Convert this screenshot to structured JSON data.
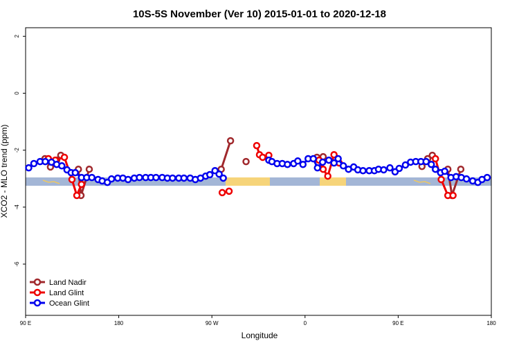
{
  "chart_data": {
    "type": "line",
    "title": "10S-5S November (Ver 10)   2015-01-01 to 2020-12-18",
    "x_label": "Longitude",
    "y_label": "XCO2 - MLO trend (ppm)",
    "xlim": [
      90,
      540
    ],
    "xticks": [
      {
        "value": 90,
        "label": "90 E"
      },
      180,
      {
        "value": 270,
        "label": "90 W"
      },
      {
        "value": 360,
        "label": "0"
      },
      {
        "value": 450,
        "label": "90 E"
      },
      {
        "value": 540,
        "label": "180"
      }
    ],
    "ylim": [
      -7.8,
      2.3
    ],
    "yticks": [
      -6,
      -4,
      -2,
      0,
      2
    ],
    "legend": "bottom-left",
    "series": [
      {
        "name": "Land Nadir",
        "color": "#a0282c",
        "x": [
          108.7,
          114,
          120,
          124,
          null,
          141,
          143.5,
          151.5,
          null,
          279,
          288,
          null,
          303,
          null,
          371.5,
          377.5,
          null,
          473,
          478.5,
          483,
          null,
          498,
          502,
          510.5
        ],
        "values": [
          -2.3,
          -2.59,
          -2.35,
          -2.18,
          null,
          -2.67,
          -3.59,
          -2.67,
          null,
          -2.67,
          -1.67,
          null,
          -2.4,
          null,
          -2.25,
          -2.23,
          null,
          -2.57,
          -2.3,
          -2.18,
          null,
          -2.67,
          -3.59,
          -2.67
        ]
      },
      {
        "name": "Land Glint",
        "color": "#ee0000",
        "x": [
          112,
          118.7,
          127.5,
          134.8,
          139.5,
          144,
          null,
          280,
          286.6,
          null,
          313.3,
          316,
          319,
          325,
          null,
          373.5,
          377.5,
          382,
          388,
          393,
          null,
          486,
          491.6,
          498,
          503
        ],
        "values": [
          -2.3,
          -2.35,
          -2.25,
          -3.03,
          -3.59,
          -3.2,
          null,
          -3.49,
          -3.44,
          null,
          -1.84,
          -2.16,
          -2.25,
          -2.18,
          null,
          -2.35,
          -2.67,
          -2.91,
          -2.16,
          -2.45,
          null,
          -2.3,
          -3.03,
          -3.59,
          -3.59
        ]
      },
      {
        "name": "Ocean Glint",
        "color": "#0000ee",
        "x": [
          93,
          98,
          104,
          109,
          115,
          120,
          125,
          130,
          134,
          138,
          144,
          149,
          154,
          160,
          164,
          169,
          173,
          179,
          184,
          189,
          195,
          200,
          206,
          211,
          216,
          222,
          227,
          232,
          238,
          243,
          249,
          254,
          259,
          264,
          268,
          273,
          277,
          281,
          null,
          325,
          328,
          333,
          338,
          343,
          349,
          353,
          358,
          363,
          368,
          372,
          377,
          383,
          388,
          392,
          397,
          402,
          407,
          411,
          416,
          422,
          427,
          431,
          436,
          442,
          447,
          451,
          457,
          462,
          467,
          472,
          477,
          482,
          486,
          491,
          495,
          501,
          506,
          511,
          516,
          522,
          527,
          531,
          536
        ],
        "values": [
          -2.62,
          -2.47,
          -2.4,
          -2.4,
          -2.42,
          -2.5,
          -2.55,
          -2.69,
          -2.79,
          -2.79,
          -2.96,
          -2.96,
          -2.96,
          -3.03,
          -3.08,
          -3.13,
          -3.01,
          -2.98,
          -2.98,
          -3.03,
          -2.98,
          -2.96,
          -2.96,
          -2.96,
          -2.96,
          -2.96,
          -2.98,
          -2.98,
          -2.98,
          -2.98,
          -2.98,
          -3.03,
          -2.98,
          -2.91,
          -2.86,
          -2.72,
          -2.84,
          -2.98,
          null,
          -2.35,
          -2.4,
          -2.47,
          -2.47,
          -2.5,
          -2.47,
          -2.38,
          -2.5,
          -2.3,
          -2.3,
          -2.62,
          -2.42,
          -2.35,
          -2.45,
          -2.3,
          -2.55,
          -2.67,
          -2.59,
          -2.69,
          -2.72,
          -2.72,
          -2.72,
          -2.67,
          -2.69,
          -2.62,
          -2.76,
          -2.64,
          -2.52,
          -2.42,
          -2.4,
          -2.4,
          -2.4,
          -2.5,
          -2.67,
          -2.79,
          -2.74,
          -2.96,
          -2.93,
          -2.96,
          -3.01,
          -3.08,
          -3.13,
          -3.03,
          -2.96
        ]
      }
    ]
  }
}
